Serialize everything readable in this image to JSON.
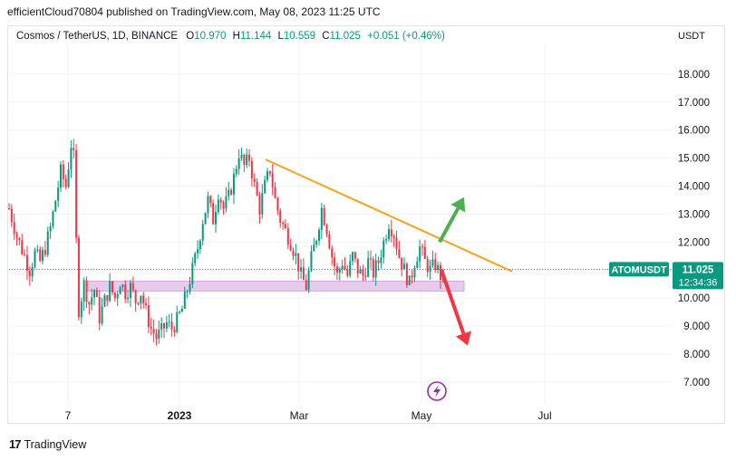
{
  "header": {
    "published": "efficientCloud70804 published on TradingView.com, May 08, 2023 11:25 UTC"
  },
  "legend": {
    "symbol": "Cosmos / TetherUS, 1D, BINANCE",
    "open_label": "O",
    "open": "10.970",
    "high_label": "H",
    "high": "11.144",
    "low_label": "L",
    "low": "10.559",
    "close_label": "C",
    "close": "11.025",
    "change": "+0.051 (+0.46%)"
  },
  "axis": {
    "currency": "USDT",
    "price_badge_symbol": "ATOMUSDT",
    "price_badge_value": "11.025",
    "price_badge_countdown": "12:34:36"
  },
  "footer": {
    "brand": "TradingView",
    "logo_text": "17"
  },
  "colors": {
    "up": "#089981",
    "down": "#f23645",
    "trendline": "#f7a21b",
    "zone": "#e1bee7",
    "arrow_up": "#4caf50",
    "arrow_down": "#f23645",
    "badge": "#089981"
  },
  "chart_data": {
    "type": "candlestick",
    "y_ticks": [
      "7.000",
      "8.000",
      "9.000",
      "10.000",
      "11.000",
      "12.000",
      "13.000",
      "14.000",
      "15.000",
      "16.000",
      "17.000",
      "18.000"
    ],
    "x_ticks": [
      "7",
      "2023",
      "Mar",
      "May",
      "Jul"
    ],
    "ylim": [
      6.0,
      19.0
    ],
    "last_price": 11.025,
    "support_zone": {
      "from": 10.25,
      "to": 10.6
    },
    "close_path": [
      [
        0,
        13.2
      ],
      [
        3,
        12.2
      ],
      [
        6,
        11.5
      ],
      [
        8,
        11.0
      ],
      [
        10,
        11.6
      ],
      [
        12,
        11.3
      ],
      [
        14,
        11.8
      ],
      [
        16,
        12.5
      ],
      [
        18,
        13.5
      ],
      [
        20,
        14.5
      ],
      [
        22,
        14.0
      ],
      [
        24,
        15.5
      ],
      [
        25,
        15.0
      ],
      [
        26,
        12.0
      ],
      [
        27,
        9.6
      ],
      [
        29,
        10.5
      ],
      [
        31,
        9.8
      ],
      [
        33,
        10.3
      ],
      [
        35,
        9.3
      ],
      [
        37,
        9.9
      ],
      [
        39,
        10.4
      ],
      [
        41,
        10.0
      ],
      [
        43,
        10.6
      ],
      [
        45,
        10.2
      ],
      [
        47,
        10.4
      ],
      [
        49,
        9.9
      ],
      [
        51,
        10.2
      ],
      [
        53,
        9.5
      ],
      [
        55,
        8.9
      ],
      [
        57,
        8.6
      ],
      [
        59,
        8.8
      ],
      [
        61,
        9.1
      ],
      [
        63,
        8.9
      ],
      [
        65,
        9.2
      ],
      [
        67,
        9.6
      ],
      [
        69,
        10.3
      ],
      [
        71,
        11.0
      ],
      [
        73,
        11.8
      ],
      [
        75,
        12.8
      ],
      [
        77,
        13.5
      ],
      [
        79,
        12.8
      ],
      [
        81,
        13.8
      ],
      [
        83,
        13.2
      ],
      [
        85,
        13.6
      ],
      [
        87,
        14.3
      ],
      [
        89,
        15.2
      ],
      [
        91,
        14.7
      ],
      [
        93,
        15.0
      ],
      [
        95,
        14.0
      ],
      [
        97,
        13.2
      ],
      [
        99,
        14.0
      ],
      [
        101,
        14.6
      ],
      [
        103,
        13.5
      ],
      [
        105,
        12.8
      ],
      [
        107,
        12.4
      ],
      [
        109,
        12.0
      ],
      [
        111,
        11.5
      ],
      [
        113,
        10.8
      ],
      [
        115,
        10.4
      ],
      [
        117,
        11.4
      ],
      [
        119,
        12.2
      ],
      [
        121,
        13.2
      ],
      [
        123,
        12.5
      ],
      [
        125,
        11.5
      ],
      [
        127,
        10.8
      ],
      [
        129,
        11.3
      ],
      [
        131,
        10.8
      ],
      [
        133,
        11.5
      ],
      [
        135,
        11.0
      ],
      [
        137,
        10.8
      ],
      [
        139,
        11.3
      ],
      [
        141,
        10.9
      ],
      [
        143,
        11.3
      ],
      [
        145,
        12.0
      ],
      [
        147,
        12.7
      ],
      [
        149,
        12.3
      ],
      [
        151,
        11.5
      ],
      [
        153,
        11.0
      ],
      [
        155,
        10.5
      ],
      [
        157,
        11.3
      ],
      [
        159,
        11.8
      ],
      [
        161,
        11.3
      ],
      [
        163,
        11.0
      ],
      [
        165,
        11.2
      ],
      [
        167,
        10.8
      ],
      [
        168,
        11.025
      ]
    ],
    "trendline": [
      [
        293,
        14.95
      ],
      [
        565,
        10.95
      ]
    ],
    "arrows": [
      {
        "direction": "up",
        "from": [
          485,
          12.0
        ],
        "to": [
          512,
          13.6
        ]
      },
      {
        "direction": "down",
        "from": [
          487,
          11.0
        ],
        "to": [
          516,
          8.3
        ]
      }
    ]
  }
}
